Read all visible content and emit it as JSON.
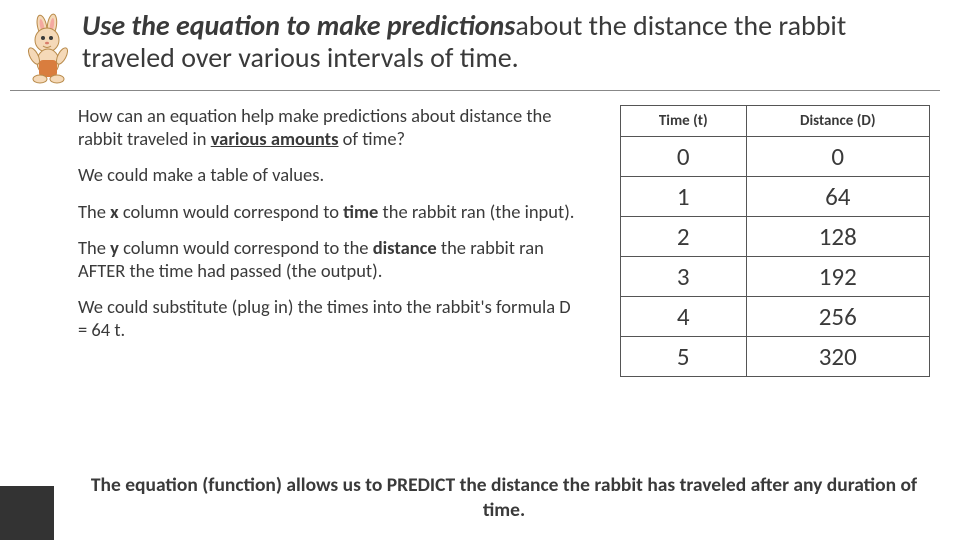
{
  "header": {
    "title_emph": "Use the equation to make predictions",
    "title_rest": "about the distance the rabbit traveled over various intervals of time."
  },
  "paragraphs": {
    "p1_a": "How can an equation help make predictions about distance the rabbit traveled in ",
    "p1_u": "various amounts",
    "p1_b": " of time?",
    "p2": "We could make a table of values.",
    "p3_a": "The ",
    "p3_x": "x",
    "p3_b": " column would correspond to ",
    "p3_time": "time",
    "p3_c": " the rabbit ran (the input).",
    "p4_a": "The ",
    "p4_y": "y",
    "p4_b": " column would correspond to the ",
    "p4_dist": "distance",
    "p4_c": " the rabbit ran AFTER the time had passed (the output).",
    "p5": "We could substitute (plug in) the times into the rabbit's formula D = 64 t."
  },
  "table": {
    "col1": "Time (t)",
    "col2": "Distance (D)",
    "rows": [
      {
        "t": "0",
        "d": "0"
      },
      {
        "t": "1",
        "d": "64"
      },
      {
        "t": "2",
        "d": "128"
      },
      {
        "t": "3",
        "d": "192"
      },
      {
        "t": "4",
        "d": "256"
      },
      {
        "t": "5",
        "d": "320"
      }
    ]
  },
  "footer": "The equation (function) allows us to PREDICT the distance the rabbit has traveled after any duration of time.",
  "colors": {
    "rabbit_body": "#f5d9b8",
    "rabbit_outline": "#b88a4a",
    "rabbit_ear_inner": "#f4a9a0",
    "rabbit_pants": "#d97d3e",
    "text": "#3a3a3a",
    "table_border": "#555555"
  },
  "fonts": {
    "title_size": 28,
    "body_size": 18.5,
    "th_size": 15,
    "td_size": 25,
    "footer_size": 19.5
  }
}
